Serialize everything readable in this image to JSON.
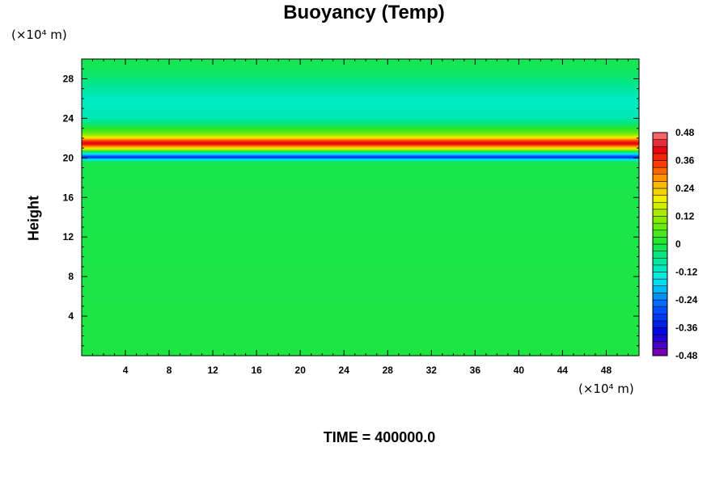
{
  "chart_data": {
    "type": "heatmap",
    "title": "Buoyancy (Temp)",
    "xlabel": "",
    "ylabel": "Height",
    "x_unit": "(×10⁴ m)",
    "y_unit": "(×10⁴ m)",
    "xlim": [
      0,
      51
    ],
    "ylim": [
      0,
      30
    ],
    "x_ticks": [
      4,
      8,
      12,
      16,
      20,
      24,
      28,
      32,
      36,
      40,
      44,
      48
    ],
    "y_ticks": [
      4,
      8,
      12,
      16,
      20,
      24,
      28
    ],
    "x_tick_labels": [
      "4",
      "8",
      "12",
      "16",
      "20",
      "24",
      "28",
      "32",
      "36",
      "40",
      "44",
      "48"
    ],
    "y_tick_labels": [
      "4",
      "8",
      "12",
      "16",
      "20",
      "24",
      "28"
    ],
    "colorbar": {
      "min": -0.48,
      "max": 0.48,
      "step": 0.03,
      "tick_values": [
        0.48,
        0.36,
        0.24,
        0.12,
        0,
        -0.12,
        -0.24,
        -0.36,
        -0.48
      ],
      "tick_labels": [
        "0.48",
        "0.36",
        "0.24",
        "0.12",
        "0",
        "-0.12",
        "-0.24",
        "-0.36",
        "-0.48"
      ]
    },
    "vertical_profile": [
      {
        "height": 0,
        "value": 0.0
      },
      {
        "height": 19.6,
        "value": -0.01
      },
      {
        "height": 19.9,
        "value": -0.15
      },
      {
        "height": 20.1,
        "value": -0.34
      },
      {
        "height": 20.35,
        "value": -0.2
      },
      {
        "height": 20.6,
        "value": -0.08
      },
      {
        "height": 20.85,
        "value": 0.12
      },
      {
        "height": 21.1,
        "value": 0.24
      },
      {
        "height": 21.5,
        "value": 0.42
      },
      {
        "height": 21.8,
        "value": 0.34
      },
      {
        "height": 22.1,
        "value": 0.2
      },
      {
        "height": 22.5,
        "value": 0.08
      },
      {
        "height": 23.0,
        "value": 0.02
      },
      {
        "height": 23.5,
        "value": -0.04
      },
      {
        "height": 24.2,
        "value": -0.1
      },
      {
        "height": 26.0,
        "value": -0.11
      },
      {
        "height": 27.2,
        "value": -0.07
      },
      {
        "height": 28.5,
        "value": -0.03
      },
      {
        "height": 30.0,
        "value": -0.01
      }
    ],
    "grid": false,
    "legend": "colorbar-right"
  },
  "time_label": "TIME = 400000.0"
}
